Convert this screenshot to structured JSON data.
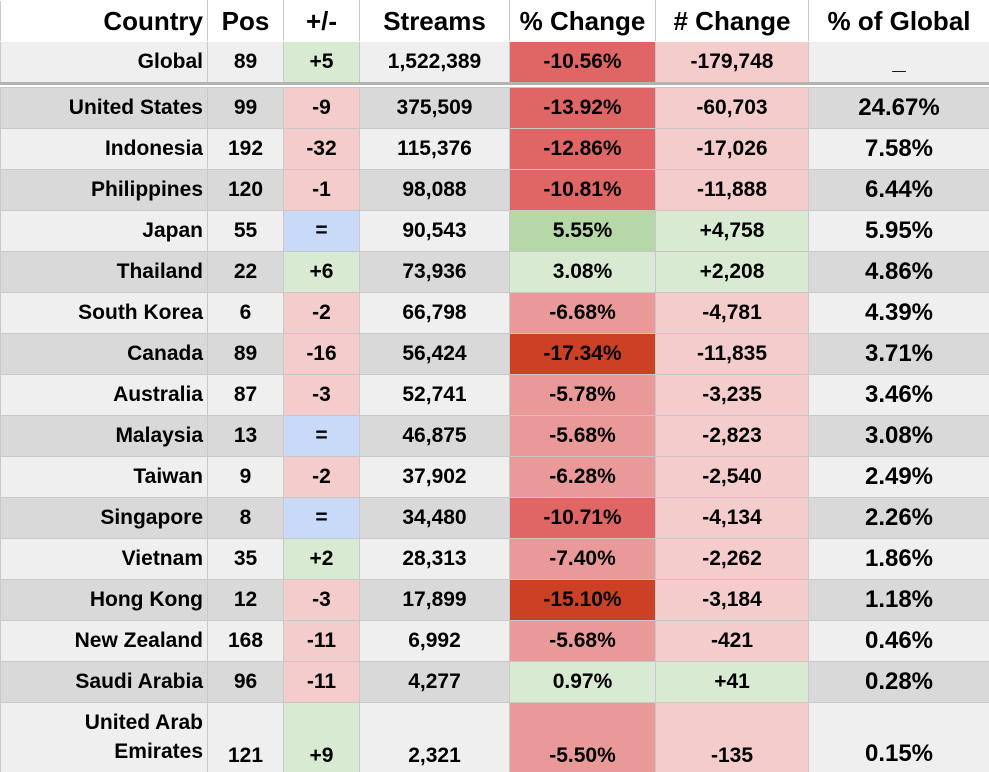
{
  "header": {
    "country": "Country",
    "pos": "Pos",
    "delta": "+/-",
    "streams": "Streams",
    "pct_change": "% Change",
    "num_change": "# Change",
    "pct_global": "% of Global"
  },
  "colors": {
    "pos_green": "#d9ead3",
    "neg_pink": "#f4cccc",
    "same_blue": "#c9daf8",
    "pct_pos_strong": "#b6d7a8",
    "pct_pos_light": "#d9ead3",
    "pct_neg_light": "#ea9999",
    "pct_neg_mid": "#e06666",
    "pct_neg_strong": "#cc4125",
    "row_dark": "#d9d9d9",
    "row_light": "#efefef"
  },
  "global": {
    "country": "Global",
    "pos": "89",
    "delta": "+5",
    "streams": "1,522,389",
    "pct_change": "-10.56%",
    "num_change": "-179,748",
    "pct_global": "_"
  },
  "rows": [
    {
      "country": "United States",
      "pos": "99",
      "delta": "-9",
      "streams": "375,509",
      "pct_change": "-13.92%",
      "num_change": "-60,703",
      "pct_global": "24.67%"
    },
    {
      "country": "Indonesia",
      "pos": "192",
      "delta": "-32",
      "streams": "115,376",
      "pct_change": "-12.86%",
      "num_change": "-17,026",
      "pct_global": "7.58%"
    },
    {
      "country": "Philippines",
      "pos": "120",
      "delta": "-1",
      "streams": "98,088",
      "pct_change": "-10.81%",
      "num_change": "-11,888",
      "pct_global": "6.44%"
    },
    {
      "country": "Japan",
      "pos": "55",
      "delta": "=",
      "streams": "90,543",
      "pct_change": "5.55%",
      "num_change": "+4,758",
      "pct_global": "5.95%"
    },
    {
      "country": "Thailand",
      "pos": "22",
      "delta": "+6",
      "streams": "73,936",
      "pct_change": "3.08%",
      "num_change": "+2,208",
      "pct_global": "4.86%"
    },
    {
      "country": "South Korea",
      "pos": "6",
      "delta": "-2",
      "streams": "66,798",
      "pct_change": "-6.68%",
      "num_change": "-4,781",
      "pct_global": "4.39%"
    },
    {
      "country": "Canada",
      "pos": "89",
      "delta": "-16",
      "streams": "56,424",
      "pct_change": "-17.34%",
      "num_change": "-11,835",
      "pct_global": "3.71%"
    },
    {
      "country": "Australia",
      "pos": "87",
      "delta": "-3",
      "streams": "52,741",
      "pct_change": "-5.78%",
      "num_change": "-3,235",
      "pct_global": "3.46%"
    },
    {
      "country": "Malaysia",
      "pos": "13",
      "delta": "=",
      "streams": "46,875",
      "pct_change": "-5.68%",
      "num_change": "-2,823",
      "pct_global": "3.08%"
    },
    {
      "country": "Taiwan",
      "pos": "9",
      "delta": "-2",
      "streams": "37,902",
      "pct_change": "-6.28%",
      "num_change": "-2,540",
      "pct_global": "2.49%"
    },
    {
      "country": "Singapore",
      "pos": "8",
      "delta": "=",
      "streams": "34,480",
      "pct_change": "-10.71%",
      "num_change": "-4,134",
      "pct_global": "2.26%"
    },
    {
      "country": "Vietnam",
      "pos": "35",
      "delta": "+2",
      "streams": "28,313",
      "pct_change": "-7.40%",
      "num_change": "-2,262",
      "pct_global": "1.86%"
    },
    {
      "country": "Hong Kong",
      "pos": "12",
      "delta": "-3",
      "streams": "17,899",
      "pct_change": "-15.10%",
      "num_change": "-3,184",
      "pct_global": "1.18%"
    },
    {
      "country": "New Zealand",
      "pos": "168",
      "delta": "-11",
      "streams": "6,992",
      "pct_change": "-5.68%",
      "num_change": "-421",
      "pct_global": "0.46%"
    },
    {
      "country": "Saudi Arabia",
      "pos": "96",
      "delta": "-11",
      "streams": "4,277",
      "pct_change": "0.97%",
      "num_change": "+41",
      "pct_global": "0.28%"
    },
    {
      "country": "United Arab Emirates",
      "pos": "121",
      "delta": "+9",
      "streams": "2,321",
      "pct_change": "-5.50%",
      "num_change": "-135",
      "pct_global": "0.15%"
    }
  ]
}
